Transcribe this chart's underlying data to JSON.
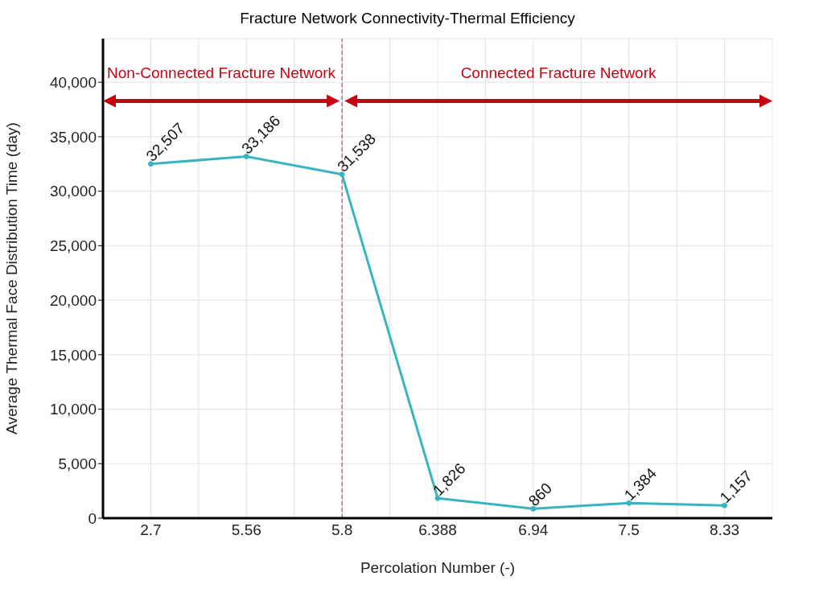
{
  "chart_data": {
    "type": "line",
    "title": "Fracture Network Connectivity-Thermal Efficiency",
    "xlabel": "Percolation Number (-)",
    "ylabel": "Average Thermal Face Distribution Time (day)",
    "categories": [
      "2.7",
      "5.56",
      "5.8",
      "6.388",
      "6.94",
      "7.5",
      "8.33"
    ],
    "series": [
      {
        "color": "#3ab5c0",
        "values": [
          32507,
          33186,
          31538,
          1826,
          860,
          1384,
          1157
        ],
        "value_labels": [
          "32,507",
          "33,186",
          "31,538",
          "1,826",
          "860",
          "1,384",
          "1,157"
        ]
      }
    ],
    "ylim": [
      0,
      44000
    ],
    "yticks": [
      0,
      {
        "value": 5000,
        "label": "5,000"
      },
      {
        "value": 10000,
        "label": "10,000"
      },
      {
        "value": 15000,
        "label": "15,000"
      },
      {
        "value": 20000,
        "label": "20,000"
      },
      {
        "value": 25000,
        "label": "25,000"
      },
      {
        "value": 30000,
        "label": "30,000"
      },
      {
        "value": 35000,
        "label": "35,000"
      },
      {
        "value": 40000,
        "label": "40,000"
      }
    ],
    "grid": true,
    "marker": "circle",
    "line_style": "solid",
    "ref_lines": [
      {
        "axis": "x",
        "value": "5.8",
        "color": "#b22234",
        "line_style": "dashed"
      }
    ],
    "annotations": [
      "Non-Connected Fracture Network",
      "Connected Fracture Network"
    ]
  }
}
